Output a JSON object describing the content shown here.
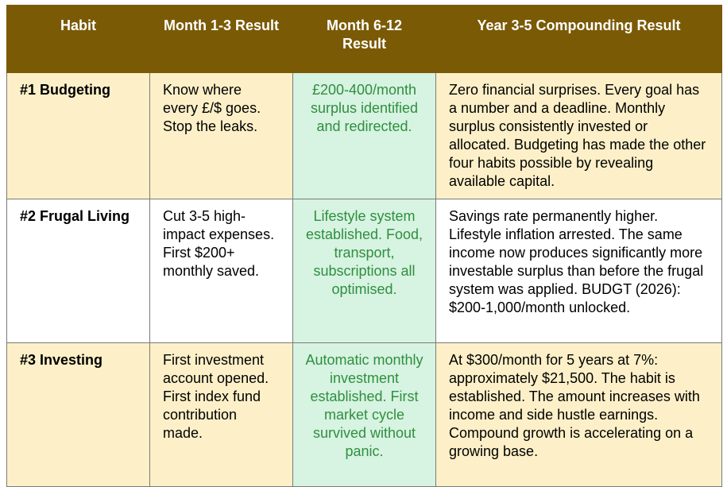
{
  "table": {
    "header": [
      "Habit",
      "Month 1-3 Result",
      "Month 6-12 Result",
      "Year 3-5 Compounding Result"
    ],
    "rows": [
      [
        "#1 Budgeting",
        "Know where every £/$ goes. Stop the leaks.",
        "£200-400/month surplus identified and redirected.",
        "Zero financial surprises. Every goal has a number and a deadline. Monthly surplus consistently invested or allocated. Budgeting has made the other four habits possible by revealing available capital."
      ],
      [
        "#2 Frugal Living",
        "Cut 3-5 high-impact expenses. First $200+ monthly saved.",
        "Lifestyle system established. Food, transport, subscriptions all optimised.",
        "Savings rate permanently higher. Lifestyle inflation arrested. The same income now produces significantly more investable surplus than before the frugal system was applied. BUDGT (2026): $200-1,000/month unlocked."
      ],
      [
        "#3 Investing",
        "First investment account opened. First index fund contribution made.",
        "Automatic monthly investment established. First market cycle survived without panic.",
        "At $300/month for 5 years at 7%: approximately $21,500. The habit is established. The amount increases with income and side hustle earnings. Compound growth is accelerating on a growing base."
      ]
    ]
  }
}
